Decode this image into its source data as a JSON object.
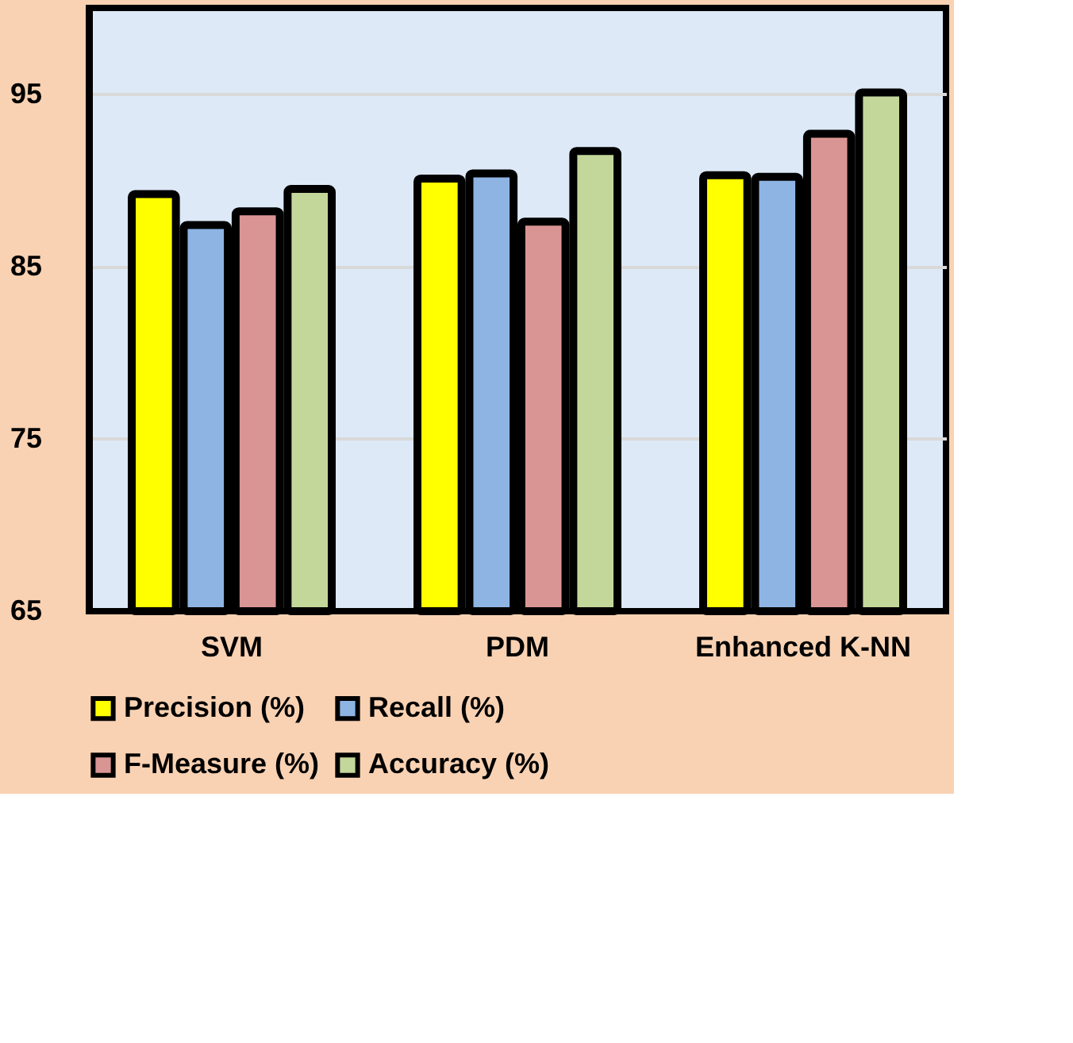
{
  "chart_data": {
    "type": "bar",
    "categories": [
      "SVM",
      "PDM",
      "Enhanced K-NN"
    ],
    "series": [
      {
        "name": "Precision (%)",
        "color": "#ffff00",
        "values": [
          89.2,
          90.1,
          90.3
        ]
      },
      {
        "name": "Recall (%)",
        "color": "#8eb4e3",
        "values": [
          87.4,
          90.4,
          90.2
        ]
      },
      {
        "name": "F-Measure (%)",
        "color": "#d99594",
        "values": [
          88.2,
          87.6,
          92.7
        ]
      },
      {
        "name": "Accuracy (%)",
        "color": "#c4d79b",
        "values": [
          89.5,
          91.7,
          95.1
        ]
      }
    ],
    "ylim": [
      65,
      100
    ],
    "yticks": [
      65,
      75,
      85,
      95
    ],
    "grid": "y",
    "legend": "bottom"
  }
}
